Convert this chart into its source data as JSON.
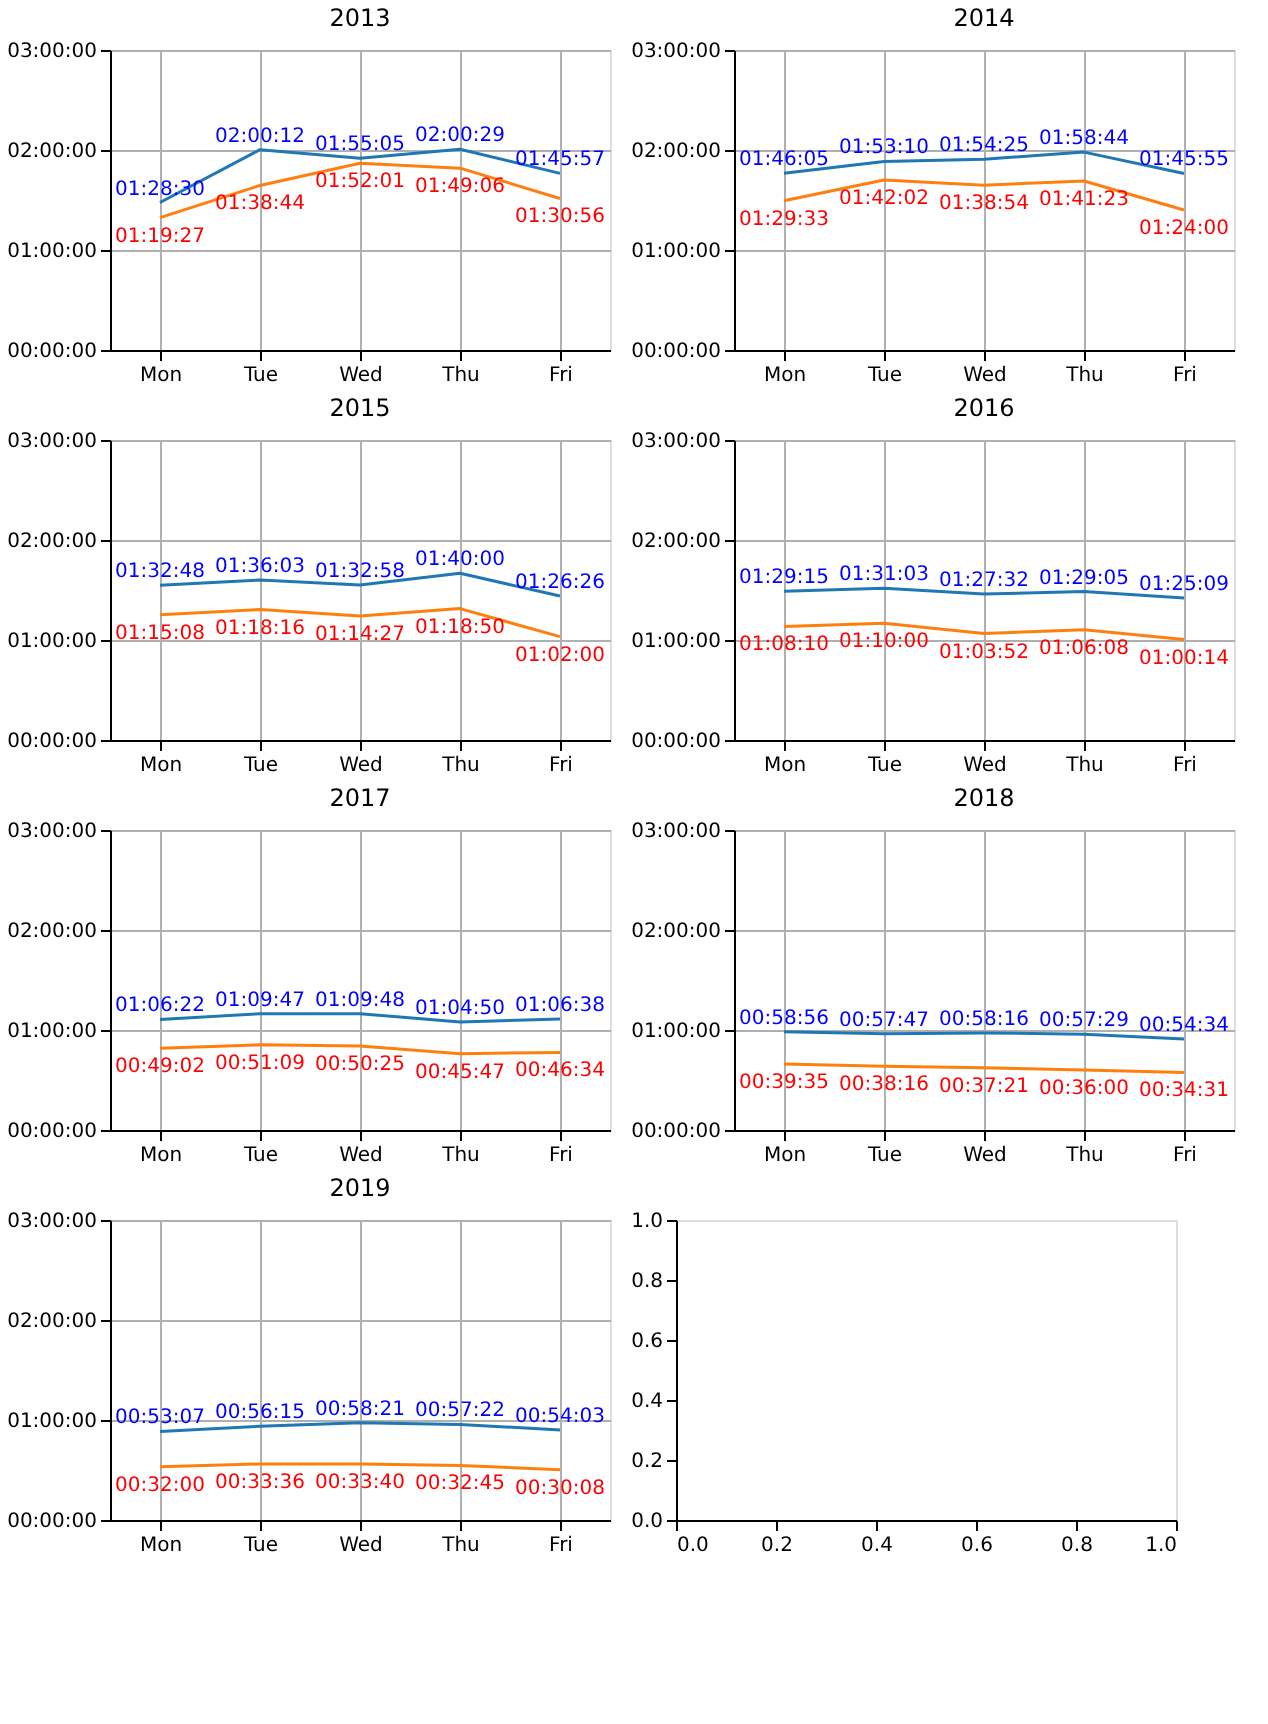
{
  "chart_data": [
    {
      "type": "line",
      "title": "2013",
      "categories": [
        "Mon",
        "Tue",
        "Wed",
        "Thu",
        "Fri"
      ],
      "ylim": [
        0,
        10800
      ],
      "yticks": [
        {
          "value": 0,
          "label": "00:00:00"
        },
        {
          "value": 3600,
          "label": "01:00:00"
        },
        {
          "value": 7200,
          "label": "02:00:00"
        },
        {
          "value": 10800,
          "label": "03:00:00"
        }
      ],
      "grid": true,
      "series": [
        {
          "color": "#1f77b4",
          "values": [
            5310,
            7212,
            6905,
            7229,
            6357
          ],
          "value_labels": [
            "01:28:30",
            "02:00:12",
            "01:55:05",
            "02:00:29",
            "01:45:57"
          ]
        },
        {
          "color": "#ff7f0e",
          "values": [
            4767,
            5924,
            6721,
            6546,
            5456
          ],
          "value_labels": [
            "01:19:27",
            "01:38:44",
            "01:52:01",
            "01:49:06",
            "01:30:56"
          ]
        }
      ]
    },
    {
      "type": "line",
      "title": "2014",
      "categories": [
        "Mon",
        "Tue",
        "Wed",
        "Thu",
        "Fri"
      ],
      "ylim": [
        0,
        10800
      ],
      "yticks": [
        {
          "value": 0,
          "label": "00:00:00"
        },
        {
          "value": 3600,
          "label": "01:00:00"
        },
        {
          "value": 7200,
          "label": "02:00:00"
        },
        {
          "value": 10800,
          "label": "03:00:00"
        }
      ],
      "grid": true,
      "series": [
        {
          "color": "#1f77b4",
          "values": [
            6365,
            6790,
            6865,
            7124,
            6355
          ],
          "value_labels": [
            "01:46:05",
            "01:53:10",
            "01:54:25",
            "01:58:44",
            "01:45:55"
          ]
        },
        {
          "color": "#ff7f0e",
          "values": [
            5373,
            6122,
            5934,
            6083,
            5040
          ],
          "value_labels": [
            "01:29:33",
            "01:42:02",
            "01:38:54",
            "01:41:23",
            "01:24:00"
          ]
        }
      ]
    },
    {
      "type": "line",
      "title": "2015",
      "categories": [
        "Mon",
        "Tue",
        "Wed",
        "Thu",
        "Fri"
      ],
      "ylim": [
        0,
        10800
      ],
      "yticks": [
        {
          "value": 0,
          "label": "00:00:00"
        },
        {
          "value": 3600,
          "label": "01:00:00"
        },
        {
          "value": 7200,
          "label": "02:00:00"
        },
        {
          "value": 10800,
          "label": "03:00:00"
        }
      ],
      "grid": true,
      "series": [
        {
          "color": "#1f77b4",
          "values": [
            5568,
            5763,
            5578,
            6000,
            5186
          ],
          "value_labels": [
            "01:32:48",
            "01:36:03",
            "01:32:58",
            "01:40:00",
            "01:26:26"
          ]
        },
        {
          "color": "#ff7f0e",
          "values": [
            4508,
            4696,
            4467,
            4730,
            3720
          ],
          "value_labels": [
            "01:15:08",
            "01:18:16",
            "01:14:27",
            "01:18:50",
            "01:02:00"
          ]
        }
      ]
    },
    {
      "type": "line",
      "title": "2016",
      "categories": [
        "Mon",
        "Tue",
        "Wed",
        "Thu",
        "Fri"
      ],
      "ylim": [
        0,
        10800
      ],
      "yticks": [
        {
          "value": 0,
          "label": "00:00:00"
        },
        {
          "value": 3600,
          "label": "01:00:00"
        },
        {
          "value": 7200,
          "label": "02:00:00"
        },
        {
          "value": 10800,
          "label": "03:00:00"
        }
      ],
      "grid": true,
      "series": [
        {
          "color": "#1f77b4",
          "values": [
            5355,
            5463,
            5252,
            5345,
            5109
          ],
          "value_labels": [
            "01:29:15",
            "01:31:03",
            "01:27:32",
            "01:29:05",
            "01:25:09"
          ]
        },
        {
          "color": "#ff7f0e",
          "values": [
            4090,
            4200,
            3832,
            3968,
            3614
          ],
          "value_labels": [
            "01:08:10",
            "01:10:00",
            "01:03:52",
            "01:06:08",
            "01:00:14"
          ]
        }
      ]
    },
    {
      "type": "line",
      "title": "2017",
      "categories": [
        "Mon",
        "Tue",
        "Wed",
        "Thu",
        "Fri"
      ],
      "ylim": [
        0,
        10800
      ],
      "yticks": [
        {
          "value": 0,
          "label": "00:00:00"
        },
        {
          "value": 3600,
          "label": "01:00:00"
        },
        {
          "value": 7200,
          "label": "02:00:00"
        },
        {
          "value": 10800,
          "label": "03:00:00"
        }
      ],
      "grid": true,
      "series": [
        {
          "color": "#1f77b4",
          "values": [
            3982,
            4187,
            4188,
            3890,
            3998
          ],
          "value_labels": [
            "01:06:22",
            "01:09:47",
            "01:09:48",
            "01:04:50",
            "01:06:38"
          ]
        },
        {
          "color": "#ff7f0e",
          "values": [
            2942,
            3069,
            3025,
            2747,
            2794
          ],
          "value_labels": [
            "00:49:02",
            "00:51:09",
            "00:50:25",
            "00:45:47",
            "00:46:34"
          ]
        }
      ]
    },
    {
      "type": "line",
      "title": "2018",
      "categories": [
        "Mon",
        "Tue",
        "Wed",
        "Thu",
        "Fri"
      ],
      "ylim": [
        0,
        10800
      ],
      "yticks": [
        {
          "value": 0,
          "label": "00:00:00"
        },
        {
          "value": 3600,
          "label": "01:00:00"
        },
        {
          "value": 7200,
          "label": "02:00:00"
        },
        {
          "value": 10800,
          "label": "03:00:00"
        }
      ],
      "grid": true,
      "series": [
        {
          "color": "#1f77b4",
          "values": [
            3536,
            3467,
            3496,
            3449,
            3274
          ],
          "value_labels": [
            "00:58:56",
            "00:57:47",
            "00:58:16",
            "00:57:29",
            "00:54:34"
          ]
        },
        {
          "color": "#ff7f0e",
          "values": [
            2375,
            2296,
            2241,
            2160,
            2071
          ],
          "value_labels": [
            "00:39:35",
            "00:38:16",
            "00:37:21",
            "00:36:00",
            "00:34:31"
          ]
        }
      ]
    },
    {
      "type": "line",
      "title": "2019",
      "categories": [
        "Mon",
        "Tue",
        "Wed",
        "Thu",
        "Fri"
      ],
      "ylim": [
        0,
        10800
      ],
      "yticks": [
        {
          "value": 0,
          "label": "00:00:00"
        },
        {
          "value": 3600,
          "label": "01:00:00"
        },
        {
          "value": 7200,
          "label": "02:00:00"
        },
        {
          "value": 10800,
          "label": "03:00:00"
        }
      ],
      "grid": true,
      "series": [
        {
          "color": "#1f77b4",
          "values": [
            3187,
            3375,
            3501,
            3442,
            3243
          ],
          "value_labels": [
            "00:53:07",
            "00:56:15",
            "00:58:21",
            "00:57:22",
            "00:54:03"
          ]
        },
        {
          "color": "#ff7f0e",
          "values": [
            1920,
            2016,
            2020,
            1965,
            1808
          ],
          "value_labels": [
            "00:32:00",
            "00:33:36",
            "00:33:40",
            "00:32:45",
            "00:30:08"
          ]
        }
      ]
    },
    {
      "type": "line",
      "xlim": [
        0,
        1
      ],
      "ylim": [
        0,
        1
      ],
      "xticks": [
        {
          "value": 0,
          "label": "0.0"
        },
        {
          "value": 0.2,
          "label": "0.2"
        },
        {
          "value": 0.4,
          "label": "0.4"
        },
        {
          "value": 0.6,
          "label": "0.6"
        },
        {
          "value": 0.8,
          "label": "0.8"
        },
        {
          "value": 1,
          "label": "1.0"
        }
      ],
      "yticks": [
        {
          "value": 0,
          "label": "0.0"
        },
        {
          "value": 0.2,
          "label": "0.2"
        },
        {
          "value": 0.4,
          "label": "0.4"
        },
        {
          "value": 0.6,
          "label": "0.6"
        },
        {
          "value": 0.8,
          "label": "0.8"
        },
        {
          "value": 1,
          "label": "1.0"
        }
      ]
    }
  ]
}
